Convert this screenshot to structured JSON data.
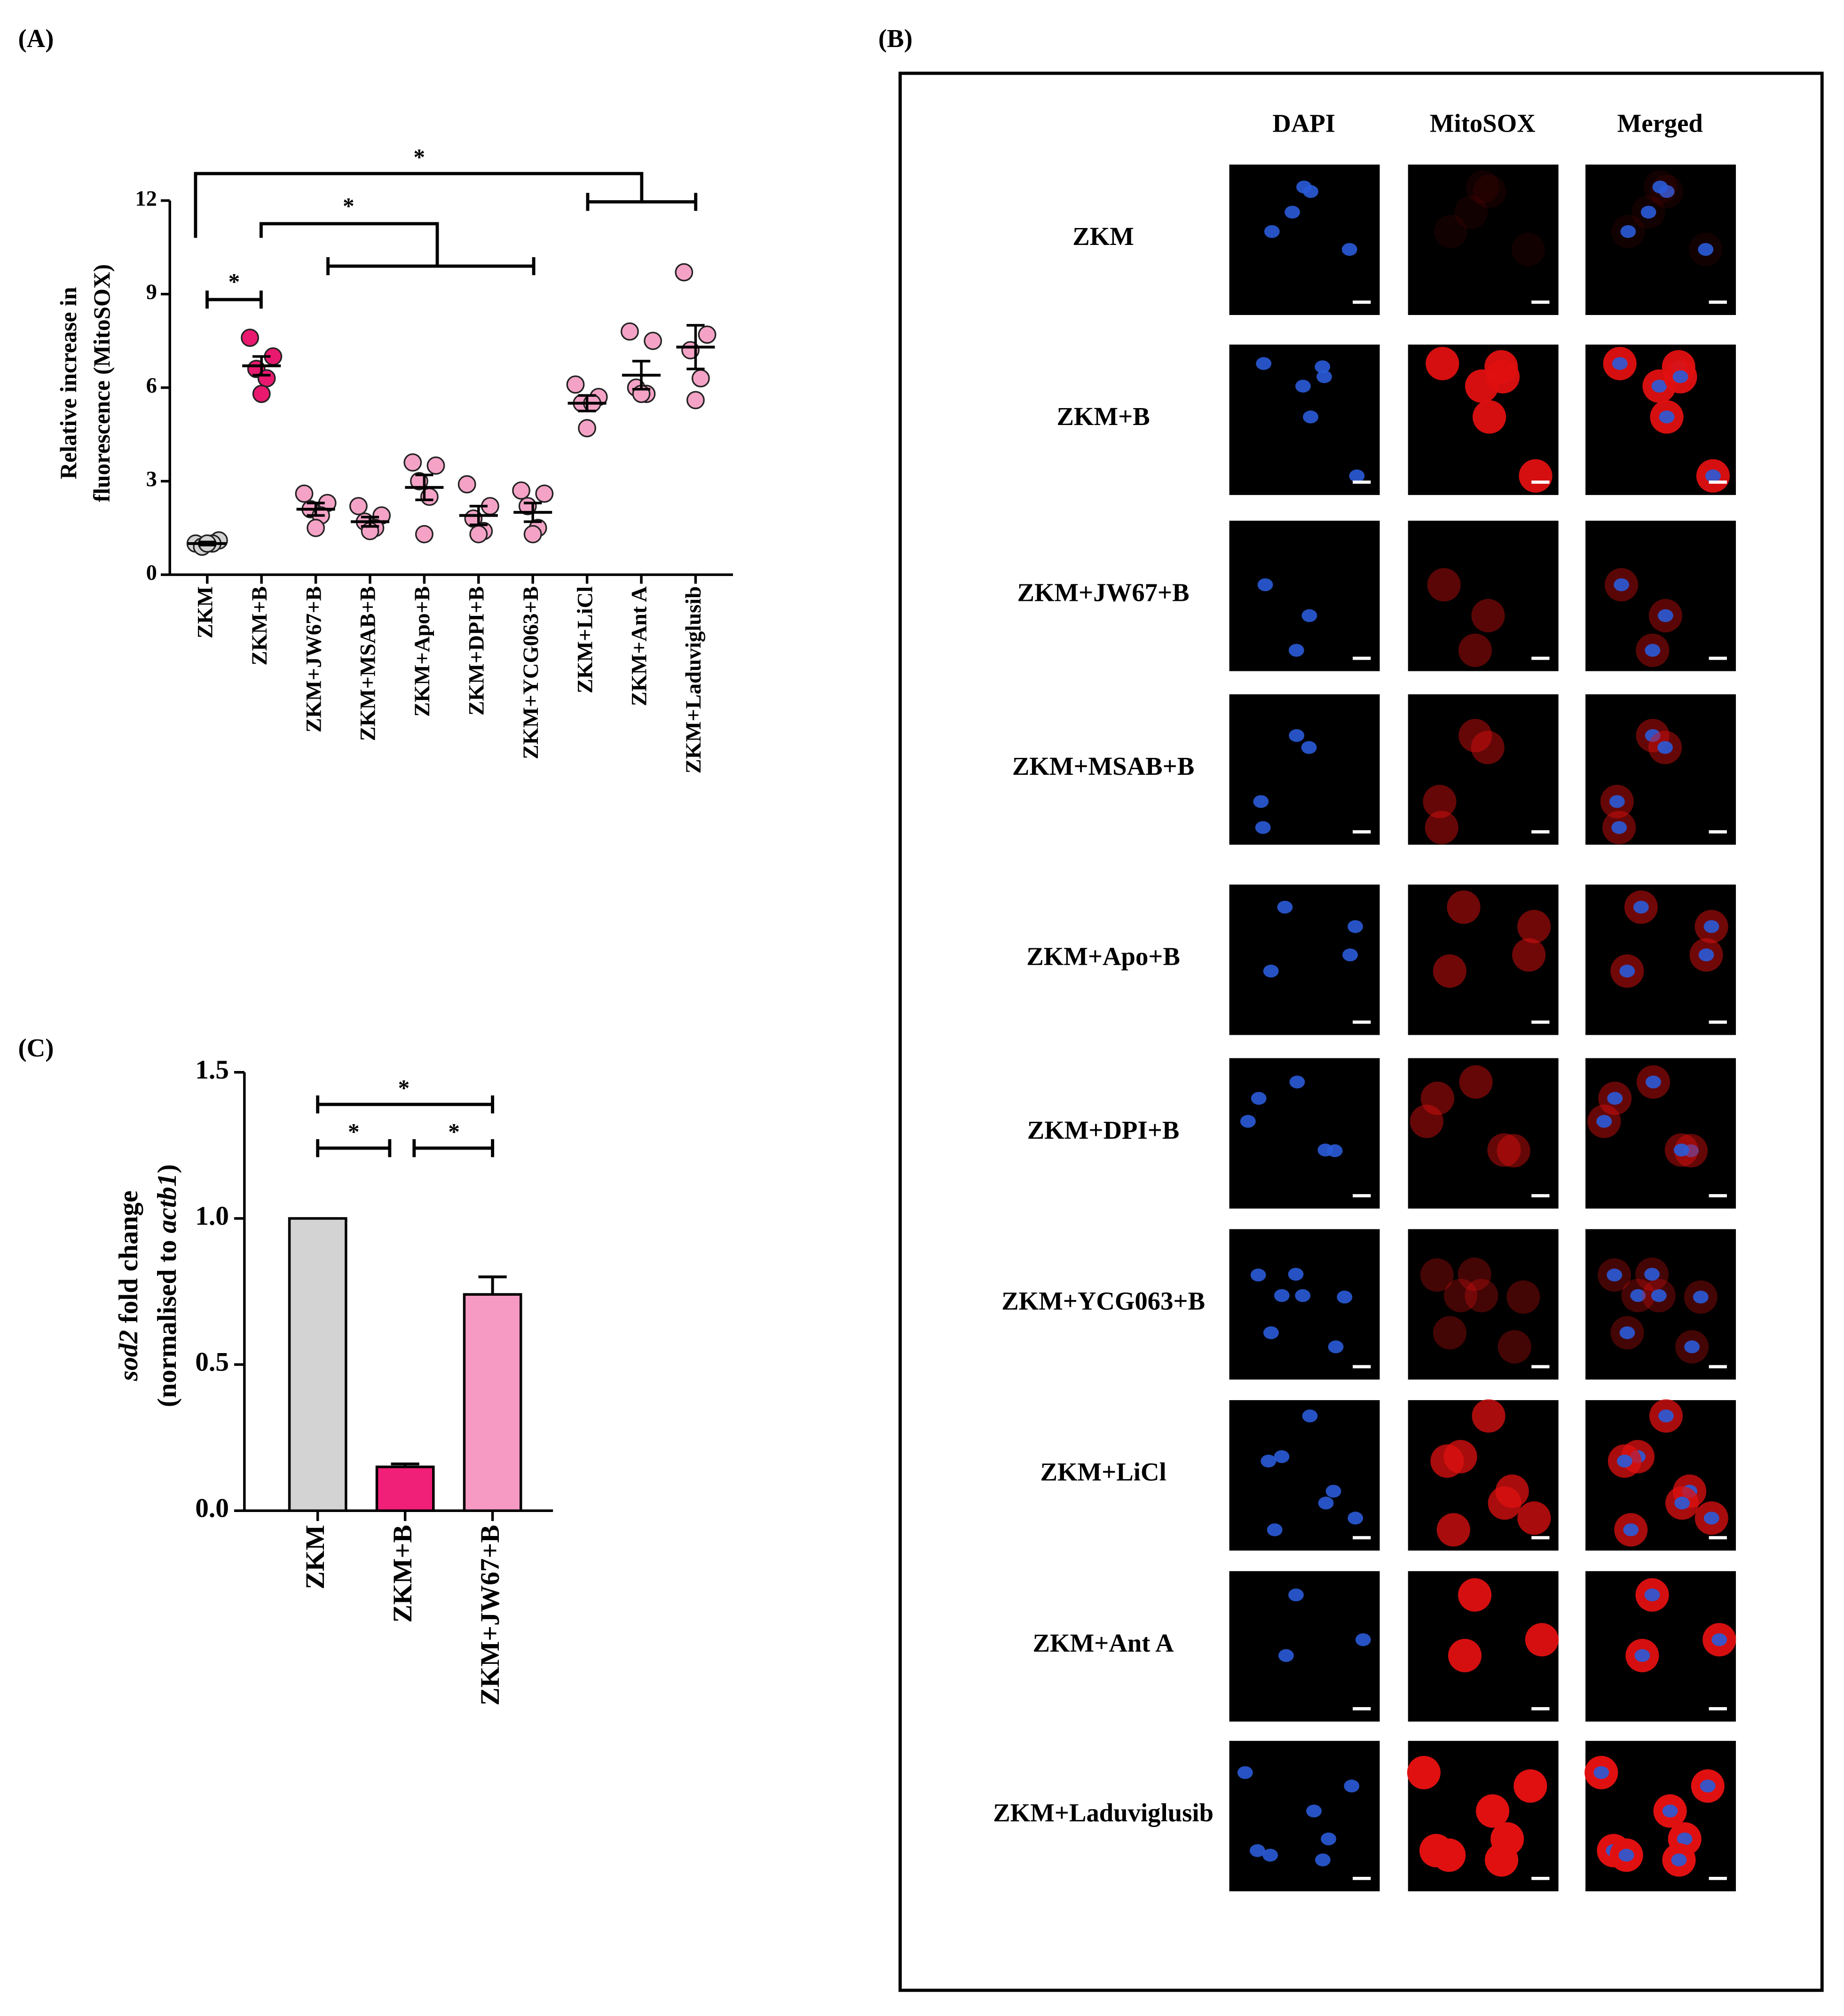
{
  "panels": {
    "A": "(A)",
    "B": "(B)",
    "C": "(C)"
  },
  "chart_data": [
    {
      "type": "dot",
      "ylabel": [
        "Relative increase in",
        "fluorescence (MitoSOX)"
      ],
      "categories": [
        "ZKM",
        "ZKM+B",
        "ZKM+JW67+B",
        "ZKM+MSAB+B",
        "ZKM+Apo+B",
        "ZKM+DPI+B",
        "ZKM+YCG063+B",
        "ZKM+LiCl",
        "ZKM+Ant A",
        "ZKM+Laduviglusib"
      ],
      "points": [
        [
          1.0,
          1.1,
          0.9,
          1.0,
          1.0
        ],
        [
          7.6,
          7.0,
          6.6,
          6.3,
          5.8
        ],
        [
          2.6,
          2.3,
          2.1,
          1.9,
          1.5
        ],
        [
          2.2,
          1.9,
          1.7,
          1.5,
          1.4
        ],
        [
          3.6,
          3.5,
          3.0,
          2.5,
          1.3
        ],
        [
          2.9,
          2.2,
          1.8,
          1.4,
          1.3
        ],
        [
          2.7,
          2.6,
          2.2,
          1.5,
          1.3
        ],
        [
          6.1,
          5.7,
          5.5,
          5.5,
          4.7
        ],
        [
          7.8,
          7.5,
          6.0,
          5.8,
          5.8
        ],
        [
          9.7,
          7.7,
          7.2,
          6.3,
          5.6
        ]
      ],
      "means": [
        1.0,
        6.7,
        2.1,
        1.7,
        2.8,
        1.9,
        2.0,
        5.5,
        6.4,
        7.3
      ],
      "errors": [
        0.05,
        0.3,
        0.2,
        0.15,
        0.4,
        0.3,
        0.3,
        0.25,
        0.45,
        0.7
      ],
      "colors": [
        "#d3d3d3",
        "#e8196f",
        "#f4a3c6",
        "#f4a3c6",
        "#f4a3c6",
        "#f4a3c6",
        "#f4a3c6",
        "#f4a3c6",
        "#f4a3c6",
        "#f4a3c6"
      ],
      "ylim": [
        0,
        12
      ],
      "yticks": [
        0,
        3,
        6,
        9,
        12
      ],
      "annotations": [
        "*",
        "*",
        "*"
      ]
    },
    {
      "type": "bar",
      "ylabel": [
        [
          "sod2",
          " fold change"
        ],
        [
          "(normalised to ",
          "actb1",
          ")"
        ]
      ],
      "categories": [
        "ZKM",
        "ZKM+B",
        "ZKM+JW67+B"
      ],
      "values": [
        1.0,
        0.15,
        0.74
      ],
      "errors": [
        null,
        0.01,
        0.06
      ],
      "colors": [
        "#d3d3d3",
        "#f01f78",
        "#f79ac3"
      ],
      "ylim": [
        0,
        1.5
      ],
      "yticks": [
        {
          "value": 0,
          "label": "0.0"
        },
        {
          "value": 0.5,
          "label": "0.5"
        },
        {
          "value": 1,
          "label": "1.0"
        },
        {
          "value": 1.5,
          "label": "1.5"
        }
      ],
      "annotations": [
        "*",
        "*",
        "*"
      ]
    }
  ],
  "image_grid": {
    "columns": [
      "DAPI",
      "MitoSOX",
      "Merged"
    ],
    "rows": [
      "ZKM",
      "ZKM+B",
      "ZKM+JW67+B",
      "ZKM+MSAB+B",
      "ZKM+Apo+B",
      "ZKM+DPI+B",
      "ZKM+YCG063+B",
      "ZKM+LiCl",
      "ZKM+Ant A",
      "ZKM+Laduviglusib"
    ]
  }
}
